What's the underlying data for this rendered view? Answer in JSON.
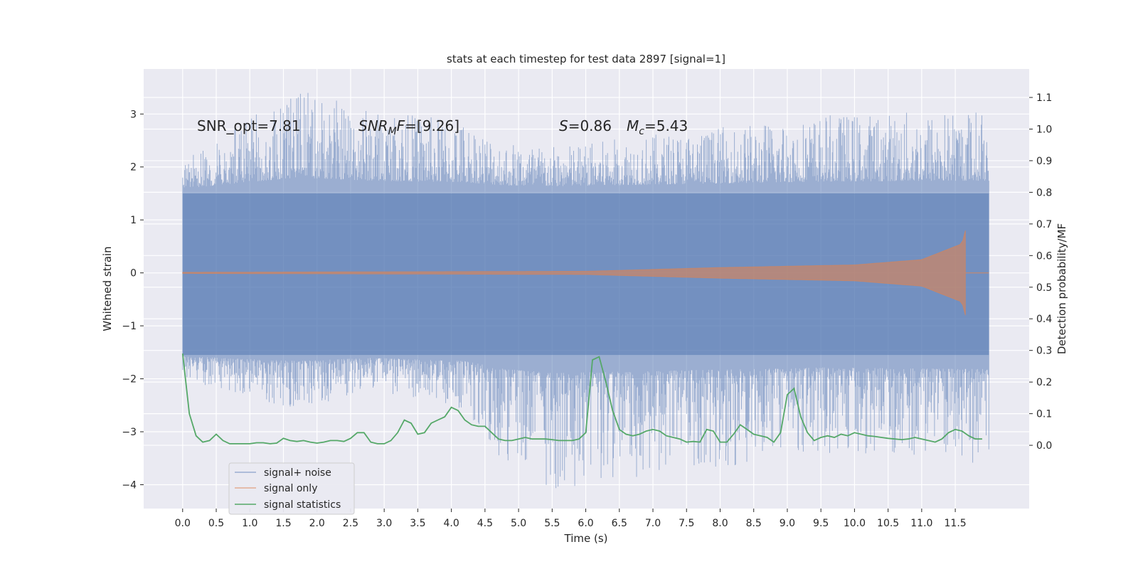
{
  "chart_data": {
    "type": "line",
    "title": "stats at each timestep for test data 2897 [signal=1]",
    "xlabel": "Time (s)",
    "ylabel": "Whitened strain",
    "ylabel_right": "Detection probability/MF",
    "xlim": [
      -0.58,
      12.6
    ],
    "ylim": [
      -4.45,
      3.85
    ],
    "ylim_right": [
      -0.2,
      1.19
    ],
    "x_ticks": [
      0.0,
      0.5,
      1.0,
      1.5,
      2.0,
      2.5,
      3.0,
      3.5,
      4.0,
      4.5,
      5.0,
      5.5,
      6.0,
      6.5,
      7.0,
      7.5,
      8.0,
      8.5,
      9.0,
      9.5,
      10.0,
      10.5,
      11.0,
      11.5
    ],
    "x_tick_labels": [
      "0.0",
      "0.5",
      "1.0",
      "1.5",
      "2.0",
      "2.5",
      "3.0",
      "3.5",
      "4.0",
      "4.5",
      "5.0",
      "5.5",
      "6.0",
      "6.5",
      "7.0",
      "7.5",
      "8.0",
      "8.5",
      "9.0",
      "9.5",
      "10.0",
      "10.5",
      "11.0",
      "11.5"
    ],
    "y_ticks": [
      -4,
      -3,
      -2,
      -1,
      0,
      1,
      2,
      3
    ],
    "y_tick_labels": [
      "−4",
      "−3",
      "−2",
      "−1",
      "0",
      "1",
      "2",
      "3"
    ],
    "y_ticks_right": [
      0.0,
      0.1,
      0.2,
      0.3,
      0.4,
      0.5,
      0.6,
      0.7,
      0.8,
      0.9,
      1.0,
      1.1
    ],
    "y_tick_labels_right": [
      "0.0",
      "0.1",
      "0.2",
      "0.3",
      "0.4",
      "0.5",
      "0.6",
      "0.7",
      "0.8",
      "0.9",
      "1.0",
      "1.1"
    ],
    "grid": true,
    "legend_position": "lower-left",
    "colors": {
      "background": "#eaeaf2",
      "grid": "#ffffff",
      "noise": "#4c72b0",
      "signal": "#dd8452",
      "stats": "#55a868"
    },
    "annotations": {
      "snr_opt": "SNR_opt=7.81",
      "snr_mf_sym": "SNR",
      "snr_mf_sub": "M",
      "snr_mf_sym2": "F",
      "snr_mf_val": "=[9.26]",
      "s_sym": "S",
      "s_val": "=0.86",
      "mc_sym": "M",
      "mc_sub": "c",
      "mc_val": "=5.43"
    },
    "series": [
      {
        "name": "signal+ noise",
        "kind": "noise",
        "x_range": [
          0.0,
          12.0
        ],
        "core_range": [
          -1.55,
          1.5
        ],
        "envelope": [
          {
            "x": 0.0,
            "upper": 2.1,
            "lower": -2.0
          },
          {
            "x": 1.7,
            "upper": 3.5,
            "lower": -2.6
          },
          {
            "x": 2.8,
            "upper": 3.1,
            "lower": -2.2
          },
          {
            "x": 4.2,
            "upper": 2.9,
            "lower": -2.6
          },
          {
            "x": 4.8,
            "upper": 2.5,
            "lower": -3.6
          },
          {
            "x": 5.55,
            "upper": 2.4,
            "lower": -4.1
          },
          {
            "x": 9.6,
            "upper": 3.0,
            "lower": -3.4
          },
          {
            "x": 11.6,
            "upper": 3.1,
            "lower": -3.6
          }
        ]
      },
      {
        "name": "signal only",
        "kind": "chirp",
        "start": 0.0,
        "merger": 11.65,
        "end": 12.0,
        "amplitude_at": [
          {
            "x": 0.0,
            "amp": 0.01
          },
          {
            "x": 6.0,
            "amp": 0.03
          },
          {
            "x": 8.0,
            "amp": 0.1
          },
          {
            "x": 10.0,
            "amp": 0.15
          },
          {
            "x": 11.0,
            "amp": 0.25
          },
          {
            "x": 11.6,
            "amp": 0.55
          },
          {
            "x": 11.65,
            "amp": 0.8
          }
        ]
      },
      {
        "name": "signal statistics",
        "kind": "stats",
        "axis": "right",
        "x": [
          0.0,
          0.1,
          0.2,
          0.3,
          0.4,
          0.5,
          0.6,
          0.7,
          0.8,
          0.9,
          1.0,
          1.1,
          1.2,
          1.3,
          1.4,
          1.5,
          1.6,
          1.7,
          1.8,
          1.9,
          2.0,
          2.1,
          2.2,
          2.3,
          2.4,
          2.5,
          2.6,
          2.7,
          2.8,
          2.9,
          3.0,
          3.1,
          3.2,
          3.3,
          3.4,
          3.5,
          3.6,
          3.7,
          3.8,
          3.9,
          4.0,
          4.1,
          4.2,
          4.3,
          4.4,
          4.5,
          4.6,
          4.7,
          4.8,
          4.9,
          5.0,
          5.1,
          5.2,
          5.3,
          5.4,
          5.5,
          5.6,
          5.7,
          5.8,
          5.9,
          6.0,
          6.1,
          6.2,
          6.3,
          6.4,
          6.5,
          6.6,
          6.7,
          6.8,
          6.9,
          7.0,
          7.1,
          7.2,
          7.3,
          7.4,
          7.5,
          7.6,
          7.7,
          7.8,
          7.9,
          8.0,
          8.1,
          8.2,
          8.3,
          8.4,
          8.5,
          8.6,
          8.7,
          8.8,
          8.9,
          9.0,
          9.1,
          9.2,
          9.3,
          9.4,
          9.5,
          9.6,
          9.7,
          9.8,
          9.9,
          10.0,
          10.1,
          10.2,
          10.3,
          10.4,
          10.5,
          10.6,
          10.7,
          10.8,
          10.9,
          11.0,
          11.1,
          11.2,
          11.3,
          11.4,
          11.5,
          11.6,
          11.7,
          11.8,
          11.9
        ],
        "values": [
          0.29,
          0.1,
          0.03,
          0.01,
          0.015,
          0.035,
          0.015,
          0.005,
          0.005,
          0.005,
          0.005,
          0.008,
          0.008,
          0.005,
          0.007,
          0.022,
          0.015,
          0.012,
          0.015,
          0.01,
          0.007,
          0.01,
          0.015,
          0.015,
          0.012,
          0.022,
          0.04,
          0.04,
          0.01,
          0.005,
          0.005,
          0.015,
          0.04,
          0.08,
          0.07,
          0.035,
          0.04,
          0.07,
          0.08,
          0.09,
          0.12,
          0.11,
          0.08,
          0.065,
          0.06,
          0.06,
          0.04,
          0.02,
          0.015,
          0.015,
          0.02,
          0.025,
          0.02,
          0.02,
          0.02,
          0.018,
          0.015,
          0.015,
          0.015,
          0.02,
          0.04,
          0.27,
          0.28,
          0.2,
          0.11,
          0.05,
          0.035,
          0.03,
          0.035,
          0.045,
          0.05,
          0.045,
          0.03,
          0.025,
          0.02,
          0.01,
          0.012,
          0.01,
          0.05,
          0.045,
          0.01,
          0.01,
          0.035,
          0.065,
          0.05,
          0.035,
          0.03,
          0.025,
          0.01,
          0.04,
          0.16,
          0.18,
          0.09,
          0.04,
          0.015,
          0.025,
          0.03,
          0.025,
          0.035,
          0.03,
          0.04,
          0.035,
          0.03,
          0.028,
          0.025,
          0.022,
          0.02,
          0.018,
          0.02,
          0.025,
          0.02,
          0.015,
          0.01,
          0.02,
          0.04,
          0.05,
          0.045,
          0.03,
          0.02,
          0.02
        ]
      }
    ]
  }
}
